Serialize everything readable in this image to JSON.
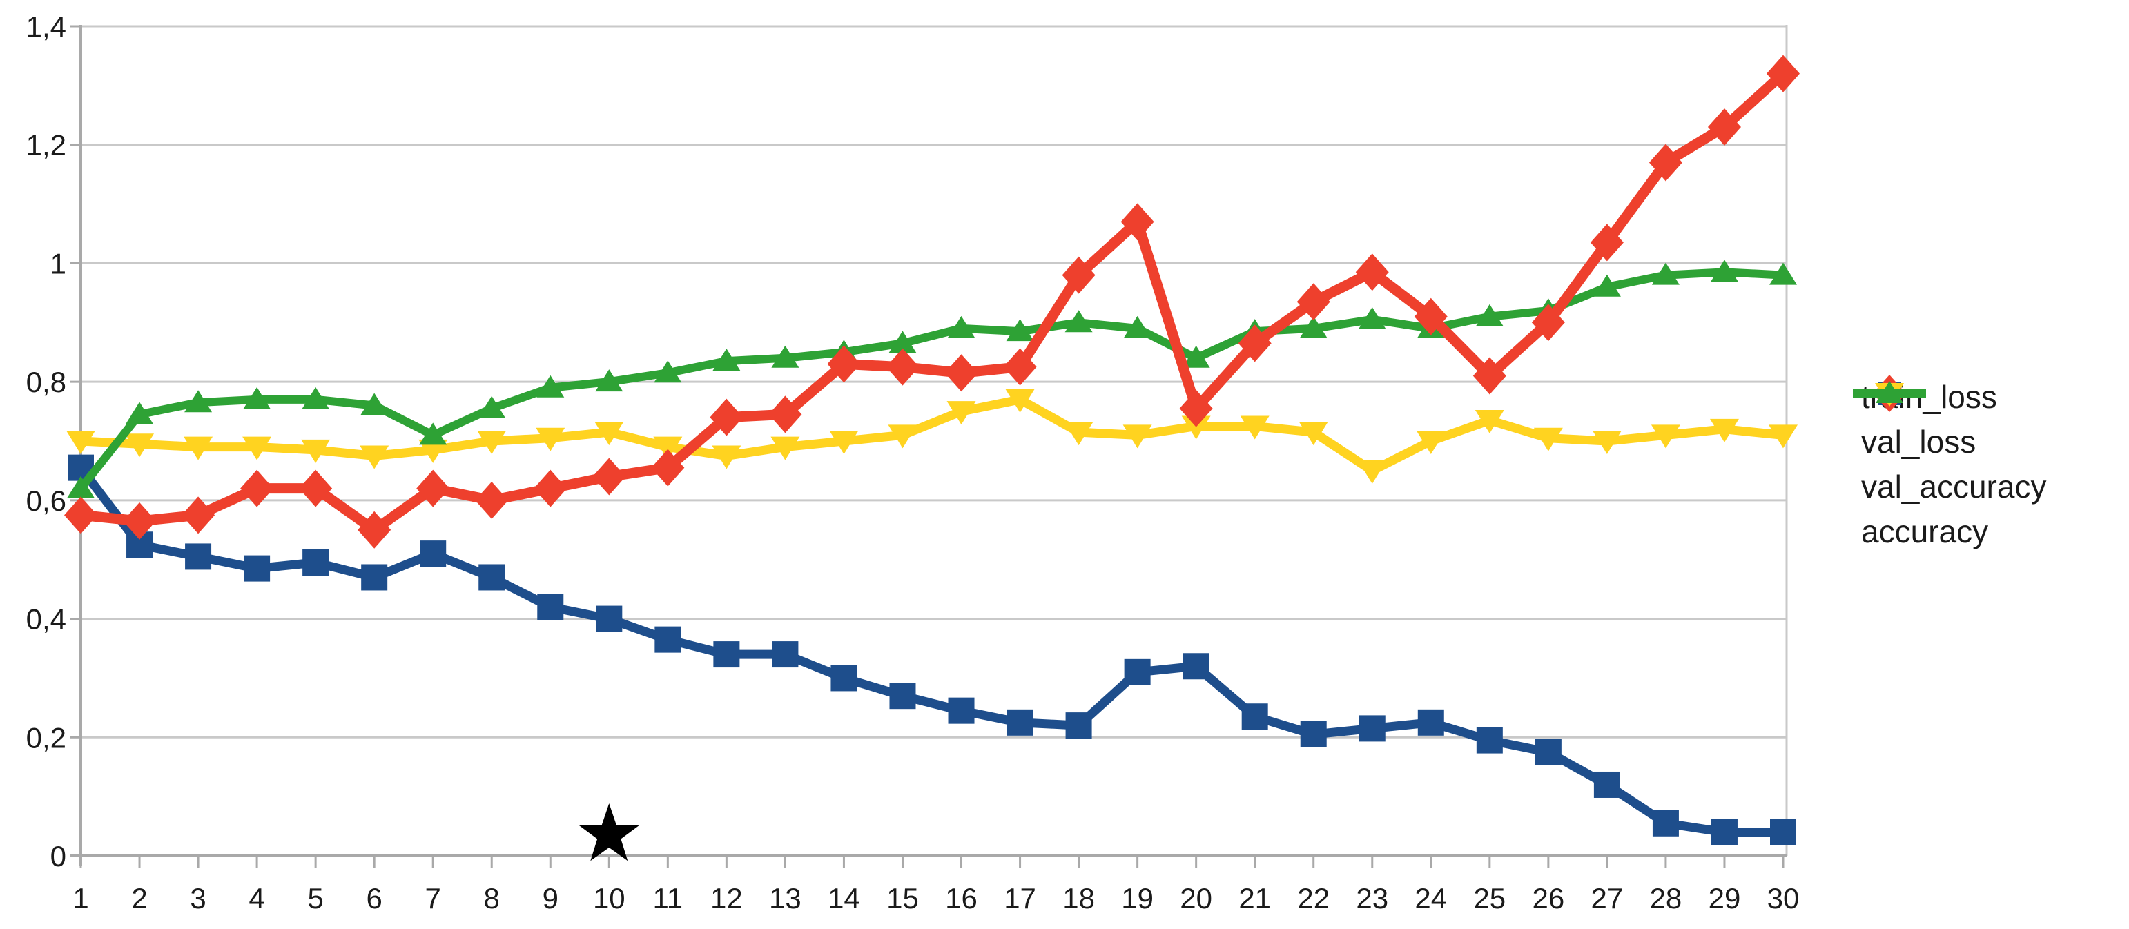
{
  "chart_data": {
    "type": "line",
    "title": "",
    "xlabel": "",
    "ylabel": "",
    "x": [
      1,
      2,
      3,
      4,
      5,
      6,
      7,
      8,
      9,
      10,
      11,
      12,
      13,
      14,
      15,
      16,
      17,
      18,
      19,
      20,
      21,
      22,
      23,
      24,
      25,
      26,
      27,
      28,
      29,
      30
    ],
    "series": [
      {
        "name": "train_loss",
        "color": "#1E4E8C",
        "marker": "square",
        "values": [
          0.655,
          0.525,
          0.505,
          0.485,
          0.495,
          0.47,
          0.51,
          0.47,
          0.42,
          0.4,
          0.365,
          0.34,
          0.34,
          0.3,
          0.27,
          0.245,
          0.225,
          0.22,
          0.31,
          0.32,
          0.235,
          0.205,
          0.215,
          0.225,
          0.195,
          0.175,
          0.12,
          0.055,
          0.04,
          0.04
        ]
      },
      {
        "name": "val_loss",
        "color": "#EE402D",
        "marker": "diamond",
        "values": [
          0.575,
          0.565,
          0.575,
          0.62,
          0.62,
          0.55,
          0.62,
          0.6,
          0.62,
          0.64,
          0.655,
          0.74,
          0.745,
          0.83,
          0.825,
          0.815,
          0.825,
          0.98,
          1.07,
          0.755,
          0.865,
          0.935,
          0.985,
          0.91,
          0.81,
          0.9,
          1.035,
          1.17,
          1.23,
          1.32
        ]
      },
      {
        "name": "val_accuracy",
        "color": "#FFD320",
        "marker": "triangle-down",
        "values": [
          0.7,
          0.695,
          0.69,
          0.69,
          0.685,
          0.675,
          0.685,
          0.7,
          0.705,
          0.715,
          0.69,
          0.675,
          0.69,
          0.7,
          0.71,
          0.75,
          0.77,
          0.715,
          0.71,
          0.725,
          0.725,
          0.715,
          0.65,
          0.7,
          0.735,
          0.705,
          0.7,
          0.71,
          0.72,
          0.71
        ]
      },
      {
        "name": "accuracy",
        "color": "#2EA235",
        "marker": "triangle-up",
        "values": [
          0.62,
          0.745,
          0.765,
          0.77,
          0.77,
          0.76,
          0.71,
          0.755,
          0.79,
          0.8,
          0.815,
          0.835,
          0.84,
          0.85,
          0.865,
          0.89,
          0.885,
          0.9,
          0.89,
          0.84,
          0.885,
          0.89,
          0.905,
          0.89,
          0.91,
          0.92,
          0.96,
          0.98,
          0.985,
          0.98
        ]
      }
    ],
    "ylim": [
      0,
      1.4
    ],
    "ytick_values": [
      0,
      0.2,
      0.4,
      0.6,
      0.8,
      1,
      1.2,
      1.4
    ],
    "ytick_labels": [
      "0",
      "0,2",
      "0,4",
      "0,6",
      "0,8",
      "1",
      "1,2",
      "1,4"
    ],
    "decimal_separator": ",",
    "grid": "horizontal",
    "legend_position": "right",
    "annotation": {
      "shape": "star",
      "x": 10,
      "y": 0.035,
      "color": "#000000"
    },
    "axis_color": "#a9a9a9",
    "grid_color": "#c9c9c9",
    "label_color": "#1a1a1a"
  }
}
